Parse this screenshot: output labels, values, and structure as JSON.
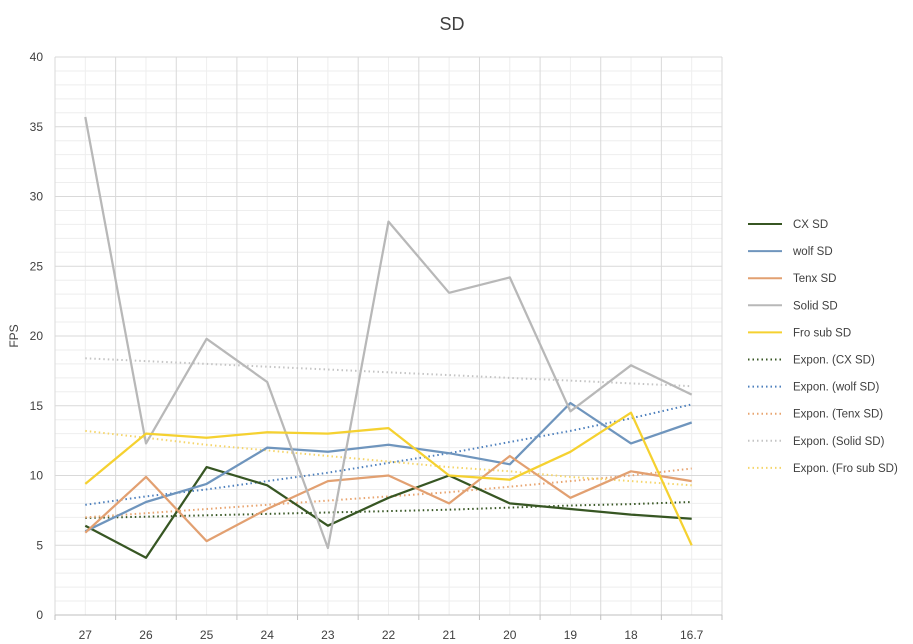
{
  "chart_data": {
    "type": "line",
    "title": "SD",
    "xlabel": "",
    "ylabel": "FPS",
    "ylim": [
      0,
      40
    ],
    "yticks": [
      "0",
      "5",
      "10",
      "15",
      "20",
      "25",
      "30",
      "35",
      "40"
    ],
    "categories": [
      "27",
      "26",
      "25",
      "24",
      "23",
      "22",
      "21",
      "20",
      "19",
      "18",
      "16.7"
    ],
    "grid": true,
    "legend_position": "right",
    "series": [
      {
        "name": "CX SD",
        "color": "#375623",
        "style": "solid",
        "values": [
          6.4,
          4.1,
          10.6,
          9.3,
          6.4,
          8.4,
          10.0,
          8.0,
          7.6,
          7.2,
          6.9
        ]
      },
      {
        "name": "wolf SD",
        "color": "#6f95bd",
        "style": "solid",
        "values": [
          6.0,
          8.1,
          9.4,
          12.0,
          11.7,
          12.2,
          11.6,
          10.8,
          15.2,
          12.3,
          13.8
        ]
      },
      {
        "name": "Tenx SD",
        "color": "#e2a071",
        "style": "solid",
        "values": [
          5.9,
          9.9,
          5.3,
          7.6,
          9.6,
          10.0,
          8.0,
          11.4,
          8.4,
          10.3,
          9.6
        ]
      },
      {
        "name": "Solid SD",
        "color": "#b8b8b8",
        "style": "solid",
        "values": [
          35.7,
          12.3,
          19.8,
          16.7,
          4.8,
          28.2,
          23.1,
          24.2,
          14.6,
          17.9,
          15.8
        ]
      },
      {
        "name": "Fro sub SD",
        "color": "#f5d130",
        "style": "solid",
        "values": [
          9.4,
          13.0,
          12.7,
          13.1,
          13.0,
          13.4,
          10.0,
          9.7,
          11.7,
          14.5,
          5.0
        ]
      },
      {
        "name": "Expon. (CX SD)",
        "color": "#375623",
        "style": "dotted",
        "values": [
          6.95,
          7.05,
          7.15,
          7.25,
          7.35,
          7.45,
          7.55,
          7.7,
          7.85,
          7.95,
          8.1
        ]
      },
      {
        "name": "Expon. (wolf SD)",
        "color": "#4e80bd",
        "style": "dotted",
        "values": [
          7.9,
          8.5,
          9.0,
          9.6,
          10.2,
          10.9,
          11.6,
          12.4,
          13.2,
          14.1,
          15.1
        ]
      },
      {
        "name": "Expon. (Tenx SD)",
        "color": "#e8a46f",
        "style": "dotted",
        "values": [
          7.0,
          7.3,
          7.6,
          7.9,
          8.2,
          8.5,
          8.8,
          9.2,
          9.6,
          10.0,
          10.5
        ]
      },
      {
        "name": "Expon. (Solid SD)",
        "color": "#c4c4c4",
        "style": "dotted",
        "values": [
          18.4,
          18.2,
          18.0,
          17.8,
          17.6,
          17.4,
          17.2,
          17.0,
          16.8,
          16.6,
          16.4
        ]
      },
      {
        "name": "Expon. (Fro sub SD)",
        "color": "#f5d56a",
        "style": "dotted",
        "values": [
          13.2,
          12.7,
          12.2,
          11.8,
          11.4,
          11.0,
          10.6,
          10.3,
          9.9,
          9.6,
          9.3
        ]
      }
    ]
  }
}
